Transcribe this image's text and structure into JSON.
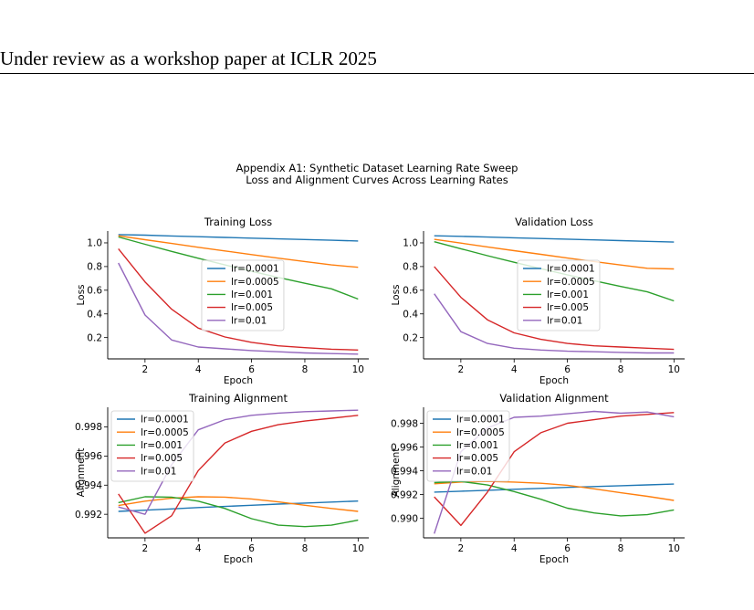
{
  "page": {
    "header": "Under review as a workshop paper at ICLR 2025",
    "suptitle_line1": "Appendix A1: Synthetic Dataset Learning Rate Sweep",
    "suptitle_line2": "Loss and Alignment Curves Across Learning Rates"
  },
  "colors": {
    "lr=0.0001": "#1f77b4",
    "lr=0.0005": "#ff7f0e",
    "lr=0.001": "#2ca02c",
    "lr=0.005": "#d62728",
    "lr=0.01": "#9467bd"
  },
  "chart_data": [
    {
      "type": "line",
      "title": "Training Loss",
      "xlabel": "Epoch",
      "ylabel": "Loss",
      "xlim": [
        0.6,
        10.4
      ],
      "ylim": [
        0.02,
        1.1
      ],
      "xticks": [
        2,
        4,
        6,
        8,
        10
      ],
      "yticks": [
        0.2,
        0.4,
        0.6,
        0.8,
        1.0
      ],
      "yticklabels": [
        "0.2",
        "0.4",
        "0.6",
        "0.8",
        "1.0"
      ],
      "legend": "center",
      "x": [
        1,
        2,
        3,
        4,
        5,
        6,
        7,
        8,
        9,
        10
      ],
      "series": [
        {
          "name": "lr=0.0001",
          "values": [
            1.07,
            1.065,
            1.058,
            1.052,
            1.046,
            1.04,
            1.034,
            1.028,
            1.022,
            1.016
          ]
        },
        {
          "name": "lr=0.0005",
          "values": [
            1.06,
            1.027,
            0.995,
            0.963,
            0.932,
            0.901,
            0.871,
            0.842,
            0.814,
            0.794
          ]
        },
        {
          "name": "lr=0.001",
          "values": [
            1.05,
            0.988,
            0.928,
            0.87,
            0.814,
            0.76,
            0.708,
            0.659,
            0.612,
            0.525
          ]
        },
        {
          "name": "lr=0.005",
          "values": [
            0.95,
            0.67,
            0.44,
            0.28,
            0.205,
            0.16,
            0.13,
            0.115,
            0.102,
            0.095
          ]
        },
        {
          "name": "lr=0.01",
          "values": [
            0.83,
            0.39,
            0.18,
            0.12,
            0.105,
            0.09,
            0.08,
            0.07,
            0.065,
            0.06
          ]
        }
      ]
    },
    {
      "type": "line",
      "title": "Validation Loss",
      "xlabel": "Epoch",
      "ylabel": "Loss",
      "xlim": [
        0.6,
        10.4
      ],
      "ylim": [
        0.02,
        1.1
      ],
      "xticks": [
        2,
        4,
        6,
        8,
        10
      ],
      "yticks": [
        0.2,
        0.4,
        0.6,
        0.8,
        1.0
      ],
      "yticklabels": [
        "0.2",
        "0.4",
        "0.6",
        "0.8",
        "1.0"
      ],
      "legend": "center",
      "x": [
        1,
        2,
        3,
        4,
        5,
        6,
        7,
        8,
        9,
        10
      ],
      "series": [
        {
          "name": "lr=0.0001",
          "values": [
            1.06,
            1.055,
            1.049,
            1.043,
            1.037,
            1.031,
            1.025,
            1.019,
            1.013,
            1.007
          ]
        },
        {
          "name": "lr=0.0005",
          "values": [
            1.03,
            0.998,
            0.966,
            0.934,
            0.903,
            0.872,
            0.842,
            0.813,
            0.785,
            0.78
          ]
        },
        {
          "name": "lr=0.001",
          "values": [
            1.01,
            0.95,
            0.892,
            0.836,
            0.782,
            0.73,
            0.68,
            0.632,
            0.586,
            0.51
          ]
        },
        {
          "name": "lr=0.005",
          "values": [
            0.8,
            0.54,
            0.35,
            0.24,
            0.185,
            0.15,
            0.13,
            0.12,
            0.11,
            0.1
          ]
        },
        {
          "name": "lr=0.01",
          "values": [
            0.57,
            0.25,
            0.15,
            0.11,
            0.095,
            0.085,
            0.08,
            0.075,
            0.07,
            0.07
          ]
        }
      ]
    },
    {
      "type": "line",
      "title": "Training Alignment",
      "xlabel": "Epoch",
      "ylabel": "Alignment",
      "xlim": [
        0.6,
        10.4
      ],
      "ylim": [
        0.99038,
        0.99935
      ],
      "xticks": [
        2,
        4,
        6,
        8,
        10
      ],
      "yticks": [
        0.992,
        0.994,
        0.996,
        0.998
      ],
      "yticklabels": [
        "0.992",
        "0.994",
        "0.996",
        "0.998"
      ],
      "legend": "upper left",
      "x": [
        1,
        2,
        3,
        4,
        5,
        6,
        7,
        8,
        9,
        10
      ],
      "series": [
        {
          "name": "lr=0.0001",
          "values": [
            0.9922,
            0.99228,
            0.99237,
            0.99246,
            0.99254,
            0.99262,
            0.9927,
            0.99277,
            0.99284,
            0.99291
          ]
        },
        {
          "name": "lr=0.0005",
          "values": [
            0.9926,
            0.9929,
            0.9931,
            0.9932,
            0.99318,
            0.99305,
            0.99285,
            0.99262,
            0.9924,
            0.9922
          ]
        },
        {
          "name": "lr=0.001",
          "values": [
            0.9928,
            0.9932,
            0.99318,
            0.9929,
            0.9924,
            0.9917,
            0.99125,
            0.99115,
            0.99125,
            0.9916
          ]
        },
        {
          "name": "lr=0.005",
          "values": [
            0.9934,
            0.9907,
            0.9919,
            0.995,
            0.9969,
            0.9977,
            0.99815,
            0.9984,
            0.9986,
            0.9988
          ]
        },
        {
          "name": "lr=0.01",
          "values": [
            0.9925,
            0.992,
            0.9954,
            0.9978,
            0.9985,
            0.9988,
            0.99895,
            0.99905,
            0.9991,
            0.99915
          ]
        }
      ]
    },
    {
      "type": "line",
      "title": "Validation Alignment",
      "xlabel": "Epoch",
      "ylabel": "Alignment",
      "xlim": [
        0.6,
        10.4
      ],
      "ylim": [
        0.98835,
        0.99935
      ],
      "xticks": [
        2,
        4,
        6,
        8,
        10
      ],
      "yticks": [
        0.99,
        0.992,
        0.994,
        0.996,
        0.998
      ],
      "yticklabels": [
        "0.990",
        "0.992",
        "0.994",
        "0.996",
        "0.998"
      ],
      "legend": "upper left",
      "x": [
        1,
        2,
        3,
        4,
        5,
        6,
        7,
        8,
        9,
        10
      ],
      "series": [
        {
          "name": "lr=0.0001",
          "values": [
            0.9922,
            0.99228,
            0.99236,
            0.99244,
            0.99252,
            0.9926,
            0.99267,
            0.99274,
            0.99281,
            0.99288
          ]
        },
        {
          "name": "lr=0.0005",
          "values": [
            0.9929,
            0.99305,
            0.9931,
            0.99305,
            0.99295,
            0.99278,
            0.99248,
            0.99215,
            0.99185,
            0.9915
          ]
        },
        {
          "name": "lr=0.001",
          "values": [
            0.993,
            0.9931,
            0.9928,
            0.99225,
            0.9916,
            0.99085,
            0.99045,
            0.9902,
            0.9903,
            0.9907
          ]
        },
        {
          "name": "lr=0.005",
          "values": [
            0.9918,
            0.9894,
            0.9922,
            0.9956,
            0.9972,
            0.998,
            0.9983,
            0.9986,
            0.99875,
            0.9989
          ]
        },
        {
          "name": "lr=0.01",
          "values": [
            0.9887,
            0.9956,
            0.9976,
            0.9985,
            0.9986,
            0.9988,
            0.999,
            0.99885,
            0.99895,
            0.99855
          ]
        }
      ]
    }
  ]
}
